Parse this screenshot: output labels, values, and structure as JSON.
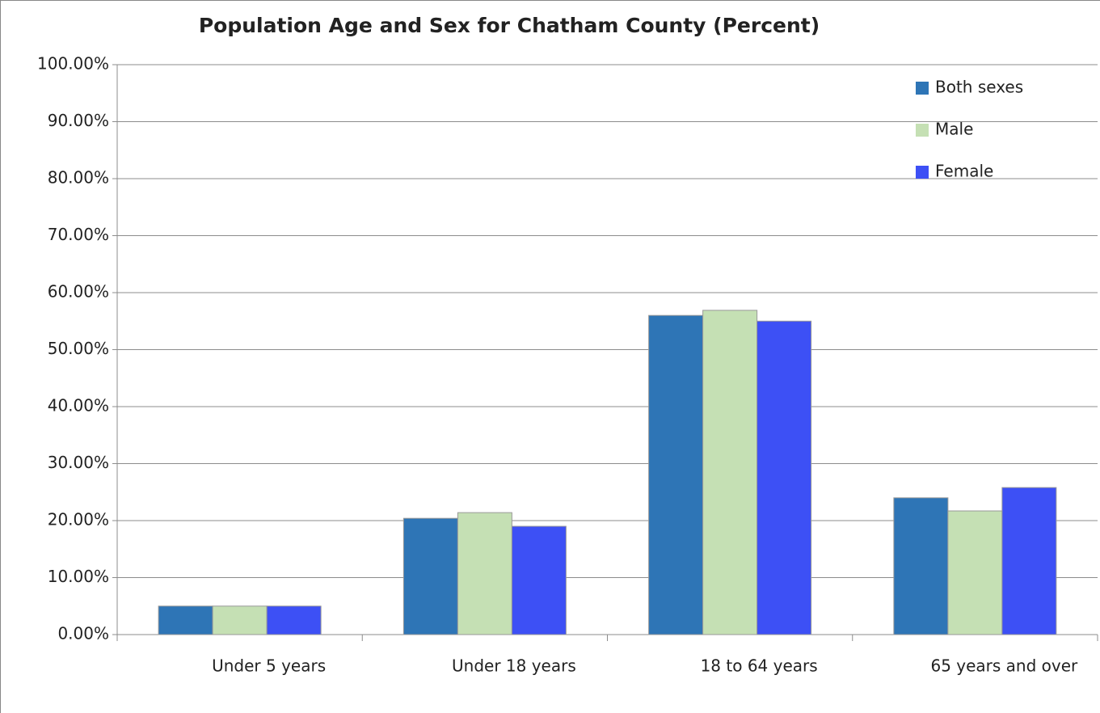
{
  "chart_data": {
    "type": "bar",
    "title": "Population Age and Sex for Chatham County (Percent)",
    "categories": [
      "Under 5 years",
      "Under 18 years",
      "18 to 64 years",
      "65 years and over"
    ],
    "series": [
      {
        "name": "Both sexes",
        "color": "#2e75b6",
        "values": [
          5.0,
          20.4,
          56.0,
          24.0
        ]
      },
      {
        "name": "Male",
        "color": "#c5e0b4",
        "values": [
          5.0,
          21.4,
          56.9,
          21.7
        ]
      },
      {
        "name": "Female",
        "color": "#3d50f5",
        "values": [
          5.0,
          19.0,
          55.0,
          25.8
        ]
      }
    ],
    "ylim": [
      0,
      100
    ],
    "yticks": [
      {
        "value": 0,
        "label": "0.00%"
      },
      {
        "value": 10,
        "label": "10.00%"
      },
      {
        "value": 20,
        "label": "20.00%"
      },
      {
        "value": 30,
        "label": "30.00%"
      },
      {
        "value": 40,
        "label": "40.00%"
      },
      {
        "value": 50,
        "label": "50.00%"
      },
      {
        "value": 60,
        "label": "60.00%"
      },
      {
        "value": 70,
        "label": "70.00%"
      },
      {
        "value": 80,
        "label": "80.00%"
      },
      {
        "value": 90,
        "label": "90.00%"
      },
      {
        "value": 100,
        "label": "100.00%"
      }
    ],
    "grid": true,
    "legend": "top-right"
  }
}
